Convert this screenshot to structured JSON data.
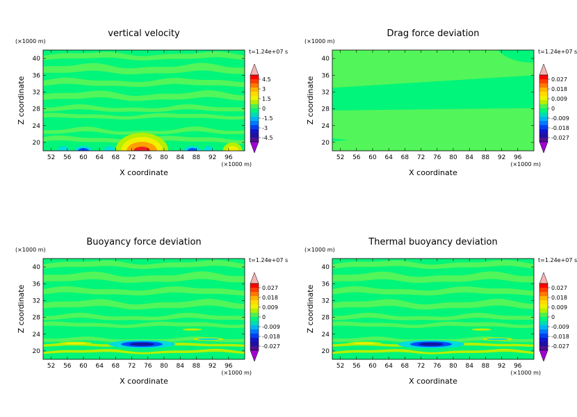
{
  "chart_data": [
    {
      "type": "heatmap",
      "title": "vertical velocity",
      "xlabel": "X coordinate",
      "ylabel": "Z coordinate",
      "x_unit": "(×1000 m)",
      "y_unit": "(×1000 m)",
      "time_label": "t=1.24e+07 s",
      "xlim": [
        50,
        100
      ],
      "ylim": [
        18,
        42
      ],
      "x_ticks": [
        "52",
        "56",
        "60",
        "64",
        "68",
        "72",
        "76",
        "80",
        "84",
        "88",
        "92",
        "96"
      ],
      "y_ticks": [
        "20",
        "24",
        "28",
        "32",
        "36",
        "40"
      ],
      "colorbar_labels": [
        "4.5",
        "3",
        "1.5",
        "0",
        "-1.5",
        "-3",
        "-4.5"
      ],
      "pattern": "velocity"
    },
    {
      "type": "heatmap",
      "title": "Drag force deviation",
      "xlabel": "X coordinate",
      "ylabel": "Z coordinate",
      "x_unit": "(×1000 m)",
      "y_unit": "(×1000 m)",
      "time_label": "t=1.24e+07 s",
      "xlim": [
        50,
        100
      ],
      "ylim": [
        18,
        42
      ],
      "x_ticks": [
        "52",
        "56",
        "60",
        "64",
        "68",
        "72",
        "76",
        "80",
        "84",
        "88",
        "92",
        "96"
      ],
      "y_ticks": [
        "20",
        "24",
        "28",
        "32",
        "36",
        "40"
      ],
      "colorbar_labels": [
        "0.027",
        "0.018",
        "0.009",
        "0",
        "-0.009",
        "-0.018",
        "-0.027"
      ],
      "pattern": "drag"
    },
    {
      "type": "heatmap",
      "title": "Buoyancy force deviation",
      "xlabel": "X coordinate",
      "ylabel": "Z coordinate",
      "x_unit": "(×1000 m)",
      "y_unit": "(×1000 m)",
      "time_label": "t=1.24e+07 s",
      "xlim": [
        50,
        100
      ],
      "ylim": [
        18,
        42
      ],
      "x_ticks": [
        "52",
        "56",
        "60",
        "64",
        "68",
        "72",
        "76",
        "80",
        "84",
        "88",
        "92",
        "96"
      ],
      "y_ticks": [
        "20",
        "24",
        "28",
        "32",
        "36",
        "40"
      ],
      "colorbar_labels": [
        "0.027",
        "0.018",
        "0.009",
        "0",
        "-0.009",
        "-0.018",
        "-0.027"
      ],
      "pattern": "buoyancy"
    },
    {
      "type": "heatmap",
      "title": "Thermal buoyancy deviation",
      "xlabel": "X coordinate",
      "ylabel": "Z coordinate",
      "x_unit": "(×1000 m)",
      "y_unit": "(×1000 m)",
      "time_label": "t=1.24e+07 s",
      "xlim": [
        50,
        100
      ],
      "ylim": [
        18,
        42
      ],
      "x_ticks": [
        "52",
        "56",
        "60",
        "64",
        "68",
        "72",
        "76",
        "80",
        "84",
        "88",
        "92",
        "96"
      ],
      "y_ticks": [
        "20",
        "24",
        "28",
        "32",
        "36",
        "40"
      ],
      "colorbar_labels": [
        "0.027",
        "0.018",
        "0.009",
        "0",
        "-0.009",
        "-0.018",
        "-0.027"
      ],
      "pattern": "buoyancy"
    }
  ],
  "colors": {
    "base_green": "#00f57a",
    "light_green": "#52f55a",
    "yellow_green": "#b4f000",
    "yellow": "#f0f000",
    "orange": "#ffa000",
    "red": "#f01e1e",
    "cyan": "#00dcdc",
    "blue": "#0050ff",
    "navy": "#1414a0",
    "pink_top": "#f5b4b4",
    "purple_bottom": "#a000d2"
  }
}
